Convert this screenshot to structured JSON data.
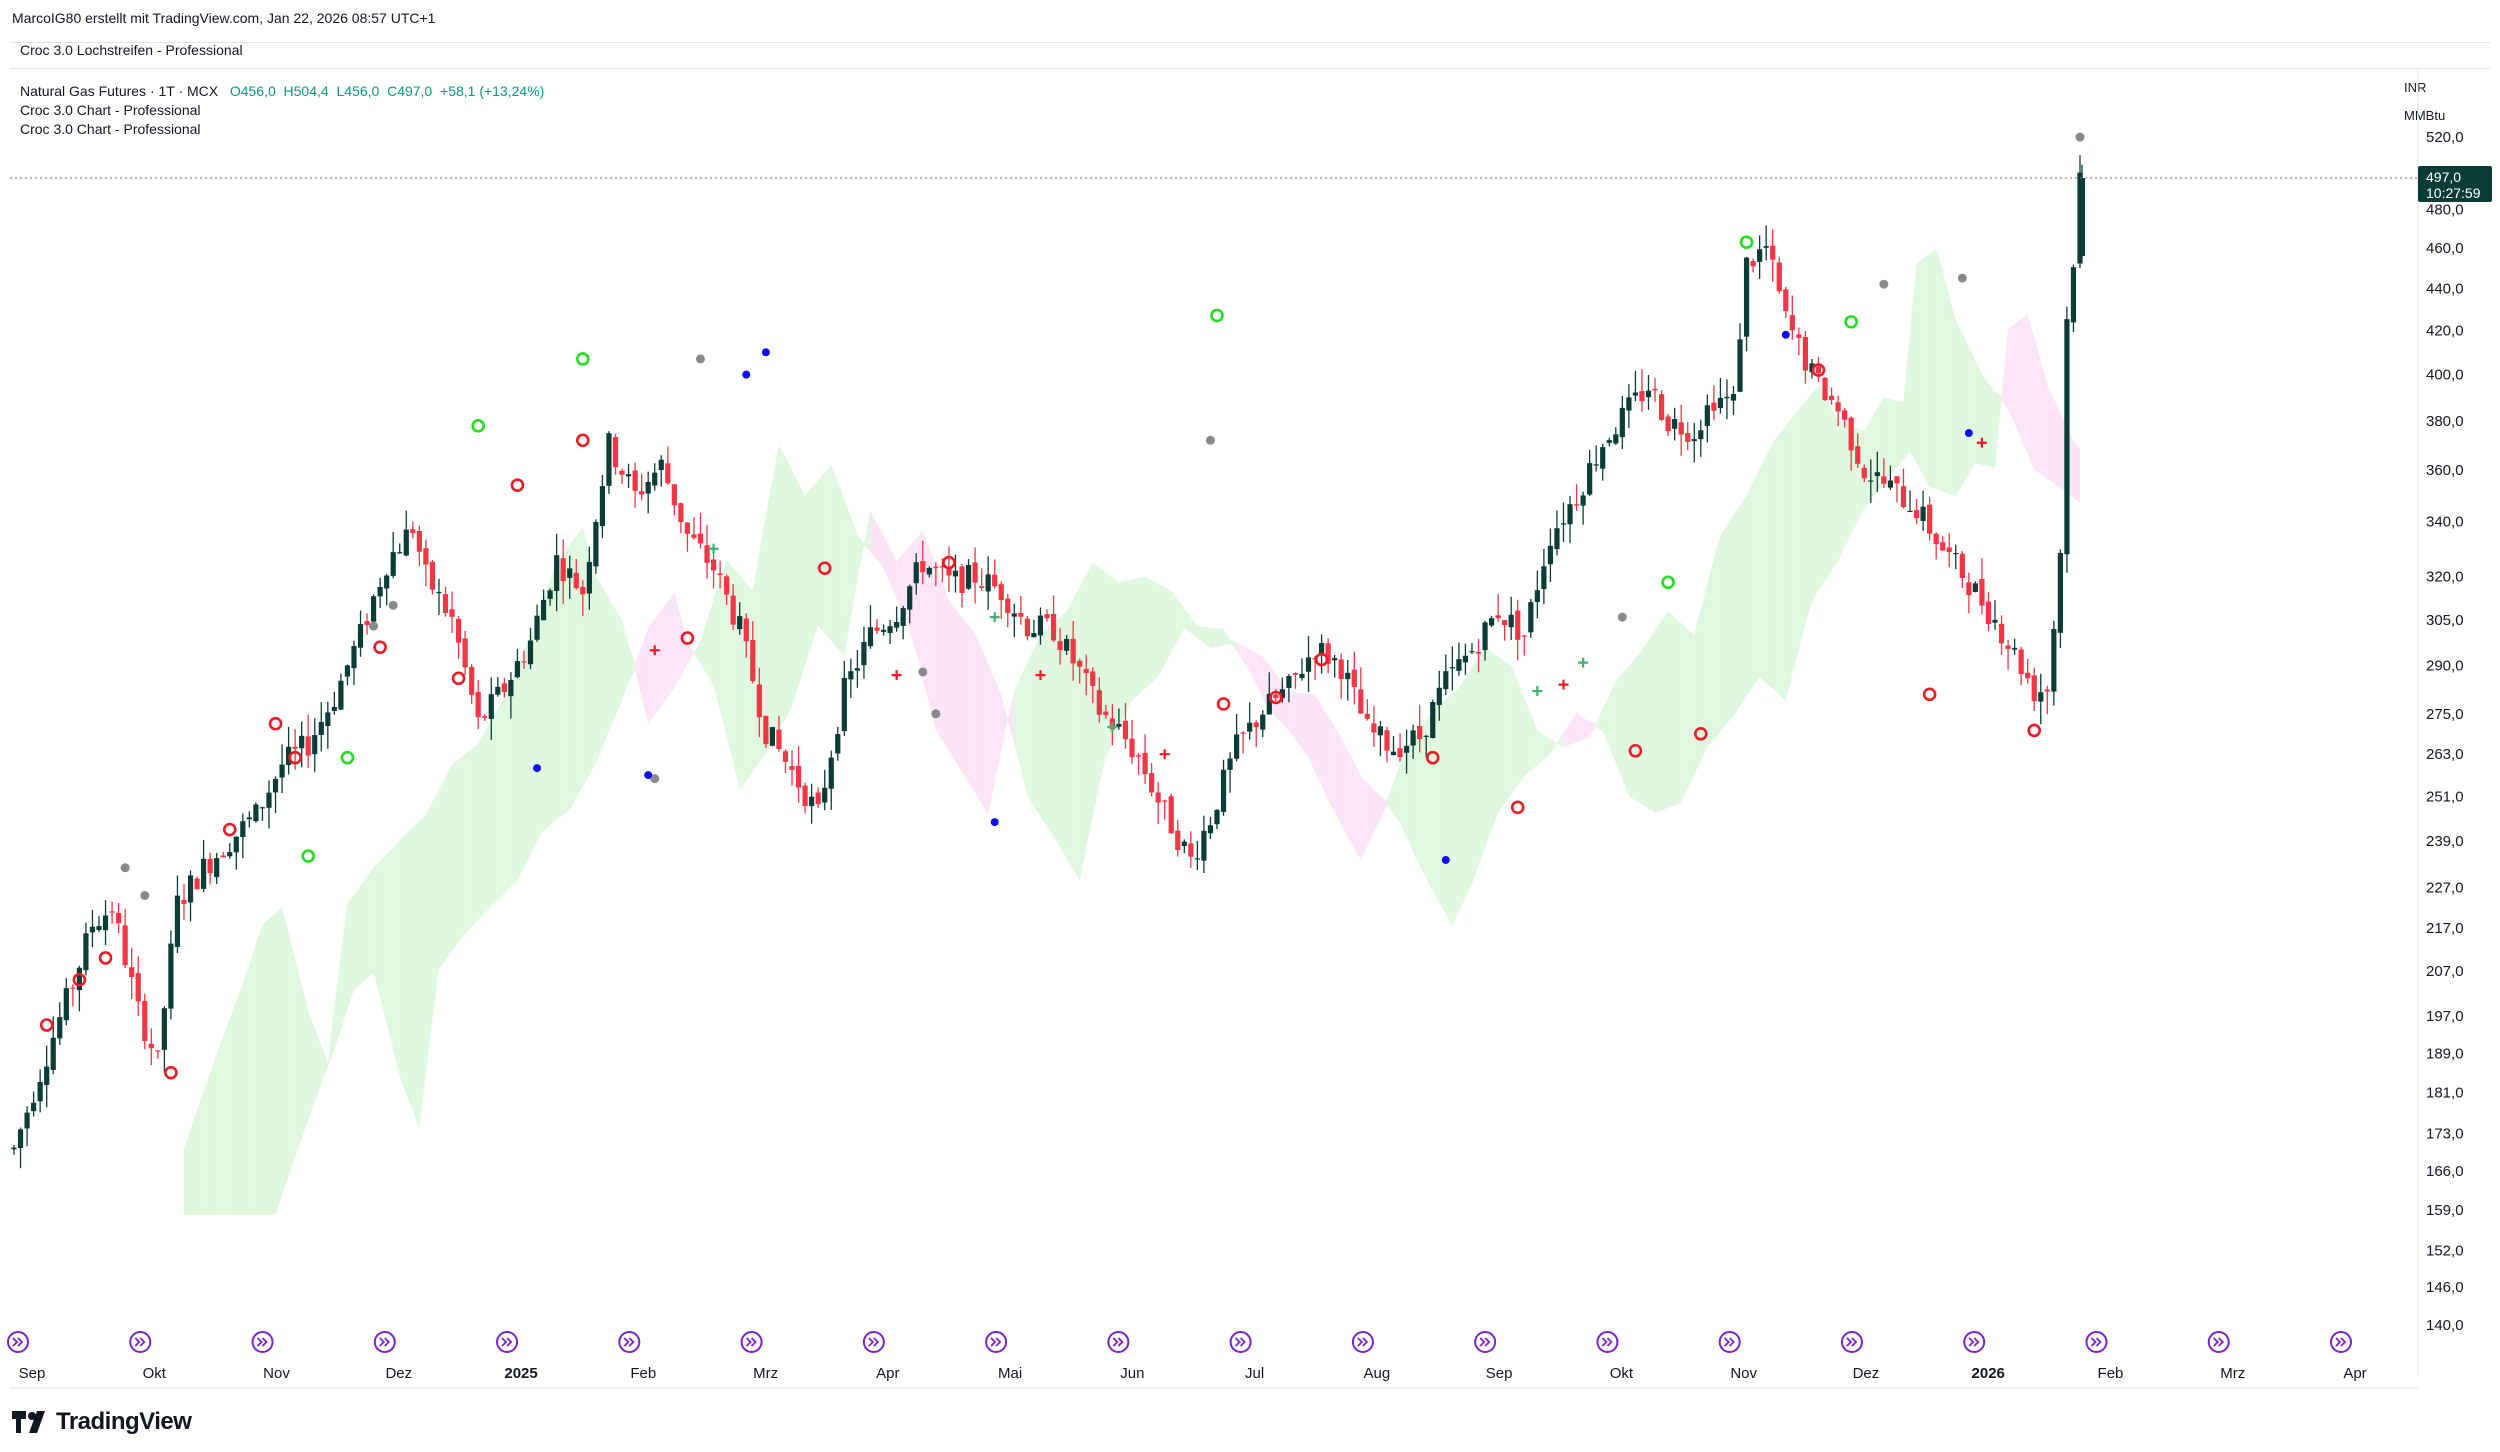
{
  "header": {
    "credit": "MarcoIG80 erstellt mit TradingView.com, Jan 22, 2026 08:57 UTC+1",
    "pane_title": "Croc 3.0 Lochstreifen - Professional"
  },
  "legend": {
    "symbol": "Natural Gas Futures · 1T · MCX",
    "open": "O456,0",
    "high": "H504,4",
    "low": "L456,0",
    "close": "C497,0",
    "change": "+58,1 (+13,24%)",
    "indicator1": "Croc 3.0 Chart - Professional",
    "indicator2": "Croc 3.0 Chart - Professional"
  },
  "units": {
    "currency": "INR",
    "unit": "MMBtu"
  },
  "price_label": {
    "price": "497,0",
    "countdown": "10:27:59"
  },
  "brand": {
    "name": "TradingView"
  },
  "colors": {
    "up": "#0b3d36",
    "down": "#f23645",
    "cloud_up": "#d9f7d9",
    "cloud_down": "#fbe1f6",
    "event_icon": "#7b22d4"
  },
  "chart_data": {
    "type": "candlestick",
    "y_axis_labels": [
      "520,0",
      "480,0",
      "460,0",
      "440,0",
      "420,0",
      "400,0",
      "380,0",
      "360,0",
      "340,0",
      "320,0",
      "305,0",
      "290,0",
      "275,0",
      "263,0",
      "251,0",
      "239,0",
      "227,0",
      "217,0",
      "207,0",
      "197,0",
      "189,0",
      "181,0",
      "173,0",
      "166,0",
      "159,0",
      "152,0",
      "146,0",
      "140,0"
    ],
    "x_axis_labels": [
      "Sep",
      "Okt",
      "Nov",
      "Dez",
      "2025",
      "Feb",
      "Mrz",
      "Apr",
      "Mai",
      "Jun",
      "Jul",
      "Aug",
      "Sep",
      "Okt",
      "Nov",
      "Dez",
      "2026",
      "Feb",
      "Mrz",
      "Apr"
    ],
    "y_scale": "log",
    "path_anchors": [
      [
        0,
        170
      ],
      [
        4,
        185
      ],
      [
        9,
        204
      ],
      [
        12,
        218
      ],
      [
        15,
        222
      ],
      [
        19,
        198
      ],
      [
        22,
        187
      ],
      [
        25,
        223
      ],
      [
        29,
        232
      ],
      [
        33,
        239
      ],
      [
        37,
        246
      ],
      [
        41,
        260
      ],
      [
        45,
        266
      ],
      [
        49,
        280
      ],
      [
        53,
        300
      ],
      [
        57,
        325
      ],
      [
        61,
        338
      ],
      [
        63,
        320
      ],
      [
        67,
        305
      ],
      [
        71,
        272
      ],
      [
        75,
        283
      ],
      [
        79,
        298
      ],
      [
        83,
        326
      ],
      [
        87,
        315
      ],
      [
        91,
        370
      ],
      [
        95,
        350
      ],
      [
        99,
        362
      ],
      [
        103,
        335
      ],
      [
        107,
        323
      ],
      [
        111,
        302
      ],
      [
        115,
        270
      ],
      [
        119,
        258
      ],
      [
        123,
        246
      ],
      [
        127,
        282
      ],
      [
        131,
        300
      ],
      [
        135,
        308
      ],
      [
        139,
        325
      ],
      [
        143,
        318
      ],
      [
        147,
        320
      ],
      [
        151,
        315
      ],
      [
        155,
        303
      ],
      [
        159,
        302
      ],
      [
        163,
        288
      ],
      [
        166,
        276
      ],
      [
        169,
        270
      ],
      [
        172,
        262
      ],
      [
        175,
        250
      ],
      [
        178,
        240
      ],
      [
        180,
        234
      ],
      [
        183,
        245
      ],
      [
        187,
        265
      ],
      [
        191,
        276
      ],
      [
        195,
        283
      ],
      [
        199,
        296
      ],
      [
        203,
        290
      ],
      [
        207,
        270
      ],
      [
        211,
        265
      ],
      [
        215,
        268
      ],
      [
        219,
        285
      ],
      [
        223,
        295
      ],
      [
        227,
        308
      ],
      [
        231,
        300
      ],
      [
        235,
        335
      ],
      [
        239,
        350
      ],
      [
        243,
        371
      ],
      [
        247,
        385
      ],
      [
        250,
        395
      ],
      [
        253,
        380
      ],
      [
        257,
        376
      ],
      [
        260,
        390
      ],
      [
        263,
        388
      ],
      [
        265,
        452
      ],
      [
        268,
        460
      ],
      [
        271,
        425
      ],
      [
        275,
        400
      ],
      [
        279,
        385
      ],
      [
        283,
        360
      ],
      [
        287,
        353
      ],
      [
        291,
        345
      ],
      [
        295,
        330
      ],
      [
        299,
        318
      ],
      [
        303,
        305
      ],
      [
        307,
        290
      ],
      [
        309,
        282
      ],
      [
        311,
        283
      ],
      [
        312,
        303
      ],
      [
        313,
        330
      ],
      [
        314,
        425
      ],
      [
        315,
        455
      ],
      [
        316,
        497
      ]
    ],
    "markers": {
      "green_circles": [
        [
          45,
          235
        ],
        [
          51,
          262
        ],
        [
          71,
          378
        ],
        [
          87,
          407
        ],
        [
          184,
          427
        ],
        [
          253,
          318
        ],
        [
          265,
          463
        ],
        [
          281,
          424
        ]
      ],
      "red_circles": [
        [
          5,
          195
        ],
        [
          10,
          205
        ],
        [
          14,
          210
        ],
        [
          24,
          185
        ],
        [
          33,
          242
        ],
        [
          40,
          272
        ],
        [
          43,
          262
        ],
        [
          56,
          296
        ],
        [
          68,
          286
        ],
        [
          77,
          354
        ],
        [
          87,
          372
        ],
        [
          103,
          299
        ],
        [
          124,
          323
        ],
        [
          143,
          325
        ],
        [
          185,
          278
        ],
        [
          193,
          280
        ],
        [
          200,
          292
        ],
        [
          217,
          262
        ],
        [
          230,
          248
        ],
        [
          248,
          264
        ],
        [
          258,
          269
        ],
        [
          276,
          402
        ],
        [
          293,
          281
        ],
        [
          309,
          270
        ]
      ],
      "gray_dots": [
        [
          17,
          232
        ],
        [
          20,
          225
        ],
        [
          55,
          303
        ],
        [
          58,
          310
        ],
        [
          98,
          256
        ],
        [
          105,
          407
        ],
        [
          139,
          288
        ],
        [
          141,
          275
        ],
        [
          183,
          372
        ],
        [
          246,
          306
        ],
        [
          286,
          442
        ],
        [
          298,
          445
        ],
        [
          316,
          520
        ]
      ],
      "blue_dots": [
        [
          80,
          259
        ],
        [
          97,
          257
        ],
        [
          112,
          400
        ],
        [
          115,
          410
        ],
        [
          150,
          244
        ],
        [
          219,
          234
        ],
        [
          271,
          418
        ],
        [
          299,
          375
        ]
      ],
      "plus_marks": [
        [
          98,
          295
        ],
        [
          107,
          330
        ],
        [
          135,
          287
        ],
        [
          150,
          306
        ],
        [
          157,
          287
        ],
        [
          168,
          271
        ],
        [
          176,
          263
        ],
        [
          233,
          282
        ],
        [
          237,
          284
        ],
        [
          240,
          291
        ],
        [
          301,
          371
        ]
      ]
    },
    "cloud_shading": [
      "green (bullish) regions",
      "pink (bearish) regions"
    ],
    "last_price": 497.0
  }
}
